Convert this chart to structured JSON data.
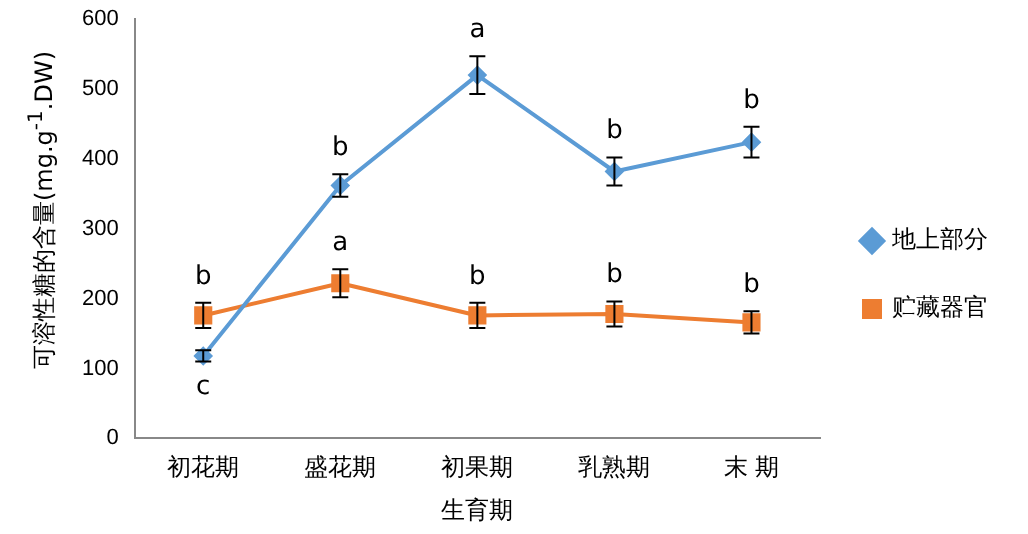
{
  "chart_data": {
    "type": "line",
    "xlabel": "生育期",
    "ylabel": "可溶性糖的含量(mg.g$^{-1}$.DW)",
    "categories": [
      "初花期",
      "盛花期",
      "初果期",
      "乳熟期",
      "末 期"
    ],
    "series": [
      {
        "name": "地上部分",
        "color": "#5b9bd5",
        "marker": "diamond",
        "values": [
          118,
          362,
          520,
          382,
          424
        ],
        "errors": [
          8,
          16,
          27,
          20,
          22
        ]
      },
      {
        "name": "贮藏器官",
        "color": "#ed7d31",
        "marker": "square",
        "values": [
          176,
          222,
          176,
          178,
          166
        ],
        "errors": [
          18,
          20,
          18,
          18,
          16
        ]
      }
    ],
    "ylim": [
      0,
      600
    ],
    "yticks": [
      0,
      100,
      200,
      300,
      400,
      500,
      600
    ],
    "grid": false,
    "legend": "right",
    "annotations": [
      {
        "text": "c",
        "x": "初花期",
        "y": 118
      },
      {
        "text": "b",
        "x": "盛花期",
        "y": 362
      },
      {
        "text": "a",
        "x": "初果期",
        "y": 520
      },
      {
        "text": "b",
        "x": "乳熟期",
        "y": 382
      },
      {
        "text": "b",
        "x": "末 期",
        "y": 424
      },
      {
        "text": "b",
        "x": "初花期",
        "y": 176
      },
      {
        "text": "a",
        "x": "盛花期",
        "y": 222
      },
      {
        "text": "b",
        "x": "初果期",
        "y": 176
      },
      {
        "text": "b",
        "x": "乳熟期",
        "y": 178
      },
      {
        "text": "b",
        "x": "末 期",
        "y": 166
      }
    ]
  }
}
